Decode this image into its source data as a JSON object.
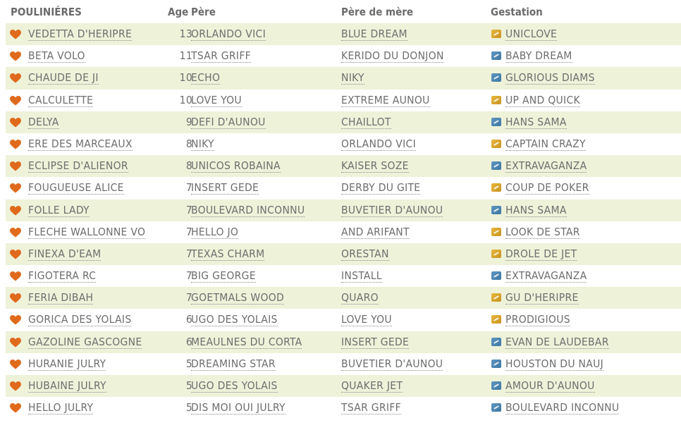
{
  "headers": {
    "name": "POULINIÉRES",
    "age": "Age",
    "pere": "Père",
    "pdm": "Père de mère",
    "gestation": "Gestation"
  },
  "colors": {
    "heart": "#e06a1c",
    "gold": "#d9a52c",
    "blue": "#4a86b3",
    "row_alt": "#eef2d9"
  },
  "rows": [
    {
      "name": "VEDETTA D'HERIPRE",
      "age": "13",
      "pere": "ORLANDO VICI",
      "pdm": "BLUE DREAM",
      "gestation": "UNICLOVE",
      "icon": "gold"
    },
    {
      "name": "BETA VOLO",
      "age": "11",
      "pere": "TSAR GRIFF",
      "pdm": "KERIDO DU DONJON",
      "gestation": "BABY DREAM",
      "icon": "blue"
    },
    {
      "name": "CHAUDE DE JI",
      "age": "10",
      "pere": "ECHO",
      "pdm": "NIKY",
      "gestation": "GLORIOUS DIAMS",
      "icon": "blue"
    },
    {
      "name": "CALCULETTE",
      "age": "10",
      "pere": "LOVE YOU",
      "pdm": "EXTREME AUNOU",
      "gestation": "UP AND QUICK",
      "icon": "gold"
    },
    {
      "name": "DELYA",
      "age": "9",
      "pere": "DEFI D'AUNOU",
      "pdm": "CHAILLOT",
      "gestation": "HANS SAMA",
      "icon": "blue"
    },
    {
      "name": "ERE DES MARCEAUX",
      "age": "8",
      "pere": "NIKY",
      "pdm": "ORLANDO VICI",
      "gestation": "CAPTAIN CRAZY",
      "icon": "gold"
    },
    {
      "name": "ECLIPSE D'ALIENOR",
      "age": "8",
      "pere": "UNICOS ROBAINA",
      "pdm": "KAISER SOZE",
      "gestation": "EXTRAVAGANZA",
      "icon": "blue"
    },
    {
      "name": "FOUGUEUSE ALICE",
      "age": "7",
      "pere": "INSERT GEDE",
      "pdm": "DERBY DU GITE",
      "gestation": "COUP DE POKER",
      "icon": "gold"
    },
    {
      "name": "FOLLE LADY",
      "age": "7",
      "pere": "BOULEVARD INCONNU",
      "pdm": "BUVETIER D'AUNOU",
      "gestation": "HANS SAMA",
      "icon": "blue"
    },
    {
      "name": "FLECHE WALLONNE VO",
      "age": "7",
      "pere": "HELLO JO",
      "pdm": "AND ARIFANT",
      "gestation": "LOOK DE STAR",
      "icon": "gold"
    },
    {
      "name": "FINEXA D'EAM",
      "age": "7",
      "pere": "TEXAS CHARM",
      "pdm": "ORESTAN",
      "gestation": "DROLE DE JET",
      "icon": "gold"
    },
    {
      "name": "FIGOTERA RC",
      "age": "7",
      "pere": "BIG GEORGE",
      "pdm": "INSTALL",
      "gestation": "EXTRAVAGANZA",
      "icon": "blue"
    },
    {
      "name": "FERIA DIBAH",
      "age": "7",
      "pere": "GOETMALS WOOD",
      "pdm": "QUARO",
      "gestation": "GU D'HERIPRE",
      "icon": "gold"
    },
    {
      "name": "GORICA DES YOLAIS",
      "age": "6",
      "pere": "UGO DES YOLAIS",
      "pdm": "LOVE YOU",
      "gestation": "PRODIGIOUS",
      "icon": "gold"
    },
    {
      "name": "GAZOLINE GASCOGNE",
      "age": "6",
      "pere": "MEAULNES DU CORTA",
      "pdm": "INSERT GEDE",
      "gestation": "EVAN DE LAUDEBAR",
      "icon": "blue"
    },
    {
      "name": "HURANIE JULRY",
      "age": "5",
      "pere": "DREAMING STAR",
      "pdm": "BUVETIER D'AUNOU",
      "gestation": "HOUSTON DU NAUJ",
      "icon": "blue"
    },
    {
      "name": "HUBAINE JULRY",
      "age": "5",
      "pere": "UGO DES YOLAIS",
      "pdm": "QUAKER JET",
      "gestation": "AMOUR D'AUNOU",
      "icon": "blue"
    },
    {
      "name": "HELLO JULRY",
      "age": "5",
      "pere": "DIS MOI OUI JULRY",
      "pdm": "TSAR GRIFF",
      "gestation": "BOULEVARD INCONNU",
      "icon": "blue"
    }
  ]
}
